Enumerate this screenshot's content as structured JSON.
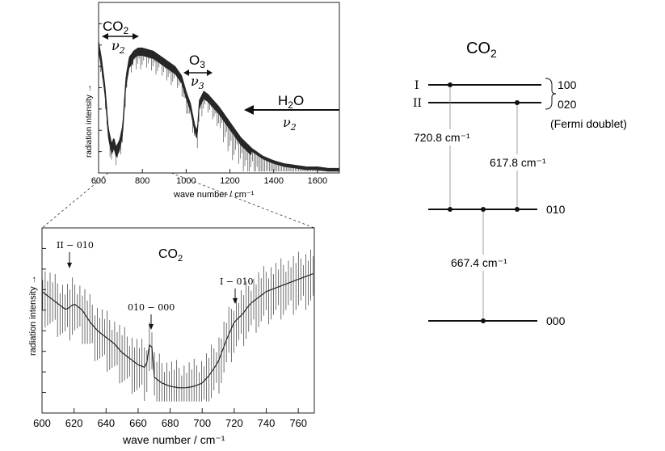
{
  "chart_data": [
    {
      "type": "line",
      "title": "",
      "xlabel": "wave number / cm⁻¹",
      "ylabel": "radiation intensity →",
      "xlim": [
        600,
        1700
      ],
      "x_ticks": [
        "600",
        "800",
        "1000",
        "1200",
        "1400",
        "1600"
      ],
      "series": [
        {
          "name": "",
          "x": [
            600,
            615,
            630,
            645,
            660,
            670,
            680,
            695,
            710,
            725,
            740,
            760,
            780,
            800,
            850,
            900,
            950,
            980,
            1000,
            1020,
            1040,
            1050,
            1060,
            1080,
            1100,
            1150,
            1200,
            1250,
            1300,
            1350,
            1400,
            1450,
            1500,
            1550,
            1600,
            1650,
            1700
          ],
          "y": [
            0.85,
            0.72,
            0.55,
            0.28,
            0.18,
            0.22,
            0.16,
            0.2,
            0.3,
            0.62,
            0.74,
            0.78,
            0.8,
            0.8,
            0.78,
            0.73,
            0.68,
            0.62,
            0.52,
            0.44,
            0.3,
            0.26,
            0.46,
            0.52,
            0.5,
            0.42,
            0.32,
            0.22,
            0.15,
            0.1,
            0.07,
            0.05,
            0.04,
            0.03,
            0.03,
            0.02,
            0.02
          ]
        }
      ]
    },
    {
      "type": "line",
      "title": "",
      "xlabel": "wave number / cm⁻¹",
      "ylabel": "radiation intensity →",
      "xlim": [
        600,
        770
      ],
      "x_ticks": [
        "600",
        "620",
        "640",
        "660",
        "680",
        "700",
        "720",
        "740",
        "760"
      ],
      "series": [
        {
          "name": "",
          "x": [
            600,
            605,
            610,
            615,
            620,
            625,
            630,
            635,
            640,
            645,
            650,
            655,
            660,
            665,
            668,
            670,
            675,
            680,
            685,
            690,
            695,
            700,
            705,
            710,
            715,
            720,
            725,
            730,
            735,
            740,
            745,
            750,
            755,
            760,
            765,
            770
          ],
          "y": [
            0.7,
            0.66,
            0.62,
            0.58,
            0.62,
            0.58,
            0.5,
            0.44,
            0.4,
            0.36,
            0.3,
            0.26,
            0.22,
            0.2,
            0.42,
            0.14,
            0.1,
            0.08,
            0.07,
            0.07,
            0.08,
            0.1,
            0.16,
            0.24,
            0.38,
            0.5,
            0.55,
            0.62,
            0.66,
            0.7,
            0.72,
            0.74,
            0.76,
            0.78,
            0.8,
            0.82
          ]
        }
      ]
    }
  ],
  "top_chart": {
    "annotations": {
      "co2": "CO",
      "co2_sub": "2",
      "co2_mode": "ν",
      "co2_mode_sub": "2",
      "o3": "O",
      "o3_sub": "3",
      "o3_mode": "ν",
      "o3_mode_sub": "3",
      "h2o_h": "H",
      "h2o_sub": "2",
      "h2o_o": "O",
      "h2o_mode": "ν",
      "h2o_mode_sub": "2"
    }
  },
  "bottom_chart": {
    "title": "CO",
    "title_sub": "2",
    "annotations": {
      "ii_010": "II − 010",
      "010_000": "010 − 000",
      "i_010": "I − 010"
    }
  },
  "energy_diagram": {
    "title": "CO",
    "title_sub": "2",
    "levels": {
      "I_label": "I",
      "II_label": "II",
      "state_100": "100",
      "state_020": "020",
      "fermi": "(Fermi doublet)",
      "state_010": "010",
      "state_000": "000"
    },
    "transitions": {
      "t1": "720.8 cm⁻¹",
      "t2": "617.8 cm⁻¹",
      "t3": "667.4 cm⁻¹"
    }
  }
}
